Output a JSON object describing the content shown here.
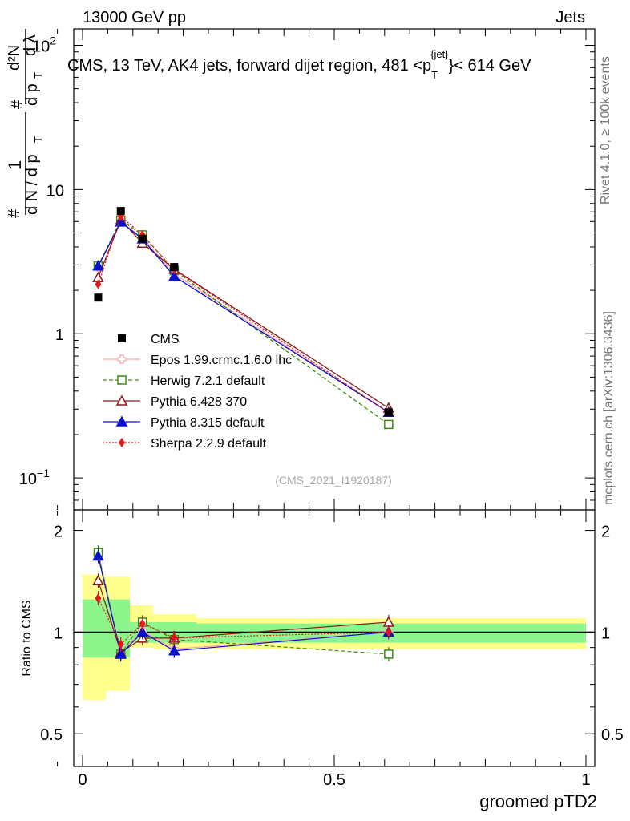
{
  "header": {
    "energy_label": "13000 GeV pp",
    "category_label": "Jets",
    "plot_title": "CMS, 13 TeV, AK4 jets, forward dijet region, 481 <p",
    "title_sup": "{jet}",
    "title_sub": "T",
    "title_tail": "}< 614 GeV",
    "rivet_label": "Rivet 4.1.0, ≥ 100k events",
    "mcplots_label": "mcplots.cern.ch [arXiv:1306.3436]",
    "analysis_id": "(CMS_2021_I1920187)"
  },
  "yaxis_main": {
    "label": "1/(dN/dpT) d²N/(dpT dλ)",
    "ticks": [
      {
        "value": 0.1,
        "base": "10",
        "exp": "−1"
      },
      {
        "value": 1,
        "base": "1",
        "exp": ""
      },
      {
        "value": 10,
        "base": "10",
        "exp": ""
      },
      {
        "value": 100,
        "base": "10",
        "exp": "2"
      }
    ]
  },
  "yaxis_ratio": {
    "label": "Ratio to CMS",
    "ticks": [
      {
        "value": 0.5,
        "label": "0.5"
      },
      {
        "value": 1,
        "label": "1"
      },
      {
        "value": 2,
        "label": "2"
      }
    ]
  },
  "xaxis": {
    "label": "groomed pTD2",
    "ticks": [
      {
        "value": 0,
        "label": "0"
      },
      {
        "value": 0.5,
        "label": "0.5"
      },
      {
        "value": 1,
        "label": "1"
      }
    ]
  },
  "chart_data": {
    "type": "line",
    "title": "CMS, 13 TeV, AK4 jets, forward dijet region, 481 < pT jet < 614 GeV",
    "xlabel": "groomed pTD2",
    "ylabel": "1/(dN/dpT) d²N/(dpT dλ)",
    "xlim": [
      0,
      1
    ],
    "ylim": [
      0.06,
      130
    ],
    "yscale": "log",
    "x": [
      0.031,
      0.076,
      0.119,
      0.182,
      0.608
    ],
    "bin_edges": [
      0,
      0.047,
      0.094,
      0.14,
      0.226,
      1.0
    ],
    "legend_position": "center-left",
    "series": [
      {
        "name": "CMS",
        "color": "#000000",
        "marker": "square-filled",
        "linestyle": "none",
        "values": [
          1.78,
          7.1,
          4.55,
          2.9,
          0.285
        ]
      },
      {
        "name": "Epos 1.99.crmc.1.6.0 lhc",
        "color": "#f4a6a6",
        "marker": "cross-open",
        "linestyle": "solid",
        "values": [
          2.9,
          6.0,
          4.6,
          2.6,
          0.285
        ]
      },
      {
        "name": "Herwig 7.2.1 default",
        "color": "#3d8c12",
        "marker": "square-open",
        "linestyle": "dashed",
        "values": [
          2.95,
          6.15,
          4.85,
          2.75,
          0.235
        ]
      },
      {
        "name": "Pythia 6.428 370",
        "color": "#8b1a1a",
        "marker": "triangle-open",
        "linestyle": "solid",
        "values": [
          2.45,
          6.15,
          4.25,
          2.8,
          0.305
        ]
      },
      {
        "name": "Pythia 8.315 default",
        "color": "#0b10c9",
        "marker": "triangle-filled",
        "linestyle": "solid",
        "values": [
          2.95,
          5.95,
          4.55,
          2.5,
          0.285
        ]
      },
      {
        "name": "Sherpa 2.2.9 default",
        "color": "#e8141b",
        "marker": "diamond-filled",
        "linestyle": "dotted",
        "values": [
          2.2,
          6.5,
          4.85,
          2.78,
          0.285
        ]
      }
    ],
    "ratio": {
      "ylabel": "Ratio to CMS",
      "ylim": [
        0.4,
        2.3
      ],
      "band_yellow": [
        [
          0.63,
          1.48
        ],
        [
          0.67,
          1.46
        ],
        [
          0.9,
          1.2
        ],
        [
          0.89,
          1.13
        ],
        [
          0.89,
          1.1
        ]
      ],
      "band_green": [
        [
          0.84,
          1.25
        ],
        [
          0.84,
          1.25
        ],
        [
          0.93,
          1.07
        ],
        [
          0.93,
          1.07
        ],
        [
          0.93,
          1.06
        ]
      ],
      "series": [
        {
          "name": "Epos 1.99.crmc.1.6.0 lhc",
          "values": [
            1.72,
            0.87,
            1.01,
            0.89,
            1.0
          ]
        },
        {
          "name": "Herwig 7.2.1 default",
          "values": [
            1.72,
            0.86,
            1.07,
            0.95,
            0.86
          ]
        },
        {
          "name": "Pythia 6.428 370",
          "values": [
            1.42,
            0.87,
            0.96,
            0.96,
            1.07
          ]
        },
        {
          "name": "Pythia 8.315 default",
          "values": [
            1.68,
            0.86,
            1.0,
            0.88,
            1.0
          ]
        },
        {
          "name": "Sherpa 2.2.9 default",
          "values": [
            1.26,
            0.92,
            1.06,
            0.96,
            1.0
          ]
        }
      ]
    }
  }
}
